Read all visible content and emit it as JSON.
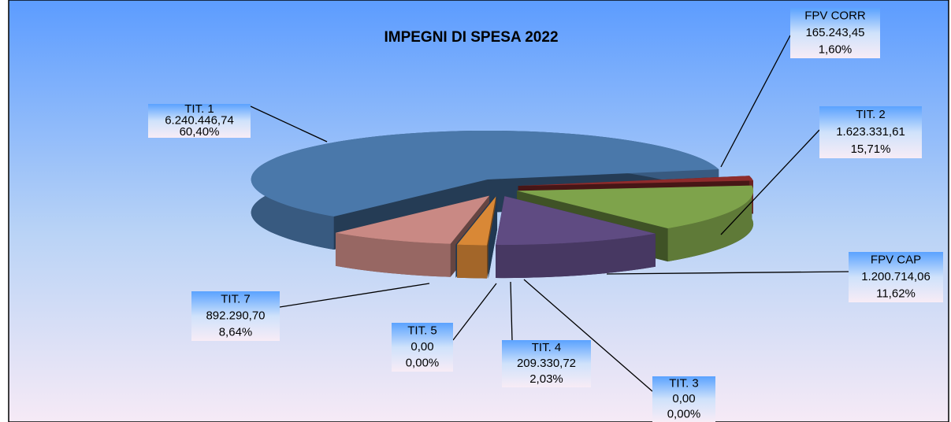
{
  "chart_data": {
    "type": "pie3d",
    "title": "IMPEGNI DI SPESA 2022",
    "categories": [
      "FPV CORR",
      "TIT. 2",
      "FPV CAP",
      "TIT. 3",
      "TIT. 4",
      "TIT. 5",
      "TIT. 7",
      "TIT. 1"
    ],
    "values": [
      165243.45,
      1623331.61,
      1200714.06,
      0,
      209330.72,
      0,
      892290.7,
      6240446.74
    ],
    "value_labels": [
      "165.243,45",
      "1.623.331,61",
      "1.200.714,06",
      "0,00",
      "209.330,72",
      "0,00",
      "892.290,70",
      "6.240.446,74"
    ],
    "percentages": [
      1.6,
      15.71,
      11.62,
      0.0,
      2.03,
      0.0,
      8.64,
      60.4
    ],
    "percentage_labels": [
      "1,60%",
      "15,71%",
      "11,62%",
      "0,00%",
      "2,03%",
      "0,00%",
      "8,64%",
      "60,40%"
    ],
    "colors": [
      "#8e2c2c",
      "#7ea34b",
      "#5f4b82",
      "#3f6fa3",
      "#d98836",
      "#3f6fa3",
      "#c98984",
      "#4a78aa"
    ]
  }
}
